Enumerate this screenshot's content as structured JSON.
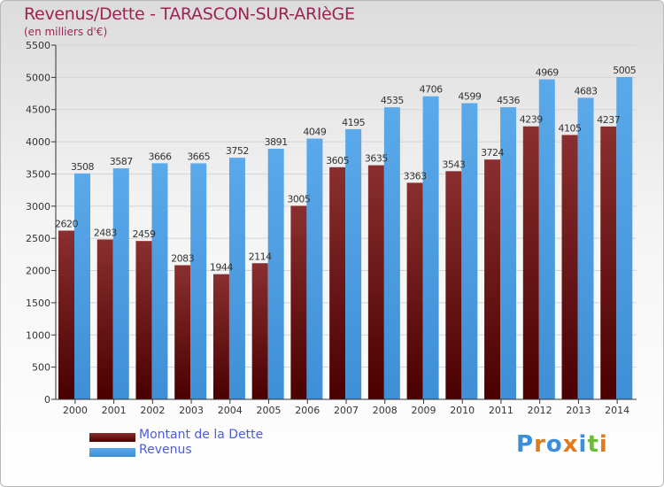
{
  "header": {
    "title": "Revenus/Dette - TARASCON-SUR-ARIèGE",
    "subtitle": "(en milliers d'€)"
  },
  "logo": {
    "text": "Proxiti"
  },
  "colors": {
    "dette_top": "#8a2f2f",
    "dette_bottom": "#4a0000",
    "revenus_top": "#5aa9ea",
    "revenus_bottom": "#3f8fd6",
    "grid": "#d4d4d4",
    "axis": "#333333",
    "title": "#9b2452",
    "legend_text": "#4a5be0"
  },
  "chart_data": {
    "type": "bar",
    "title": "Revenus/Dette - TARASCON-SUR-ARIèGE",
    "subtitle": "(en milliers d'€)",
    "xlabel": "",
    "ylabel": "",
    "categories": [
      "2000",
      "2001",
      "2002",
      "2003",
      "2004",
      "2005",
      "2006",
      "2007",
      "2008",
      "2009",
      "2010",
      "2011",
      "2012",
      "2013",
      "2014"
    ],
    "series": [
      {
        "name": "Montant de la Dette",
        "values": [
          2620,
          2483,
          2459,
          2083,
          1944,
          2114,
          3005,
          3605,
          3635,
          3363,
          3543,
          3724,
          4239,
          4105,
          4237
        ],
        "labels": [
          "2620",
          "2483",
          "2459",
          "2083",
          "1944",
          "2114",
          "3005",
          "3605",
          "3635",
          "3363",
          "3543",
          "3724",
          "4239",
          "4105",
          "4237"
        ]
      },
      {
        "name": "Revenus",
        "values": [
          3508,
          3587,
          3666,
          3665,
          3752,
          3891,
          4049,
          4195,
          4535,
          4706,
          4599,
          4536,
          4969,
          4683,
          5005
        ],
        "labels": [
          "3508",
          "3587",
          "3666",
          "3665",
          "3752",
          "3891",
          "4049",
          "4195",
          "4535",
          "4706",
          "4599",
          "4536",
          "4969",
          "4683",
          "5005"
        ]
      }
    ],
    "ylim": [
      0,
      5500
    ],
    "yticks": [
      0,
      500,
      1000,
      1500,
      2000,
      2500,
      3000,
      3500,
      4000,
      4500,
      5000,
      5500
    ],
    "grid": true,
    "legend_position": "bottom-left"
  }
}
